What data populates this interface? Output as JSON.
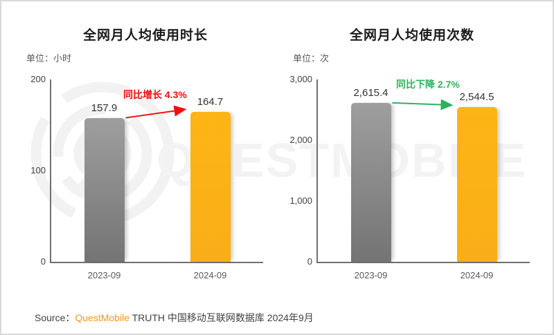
{
  "watermark": {
    "text": "QUESTMOBILE",
    "color": "#f3f3f3"
  },
  "source": {
    "label": "Source：",
    "brand": "QuestMobile",
    "brand_color": "#f7941e",
    "rest": " TRUTH 中国移动互联网数据库 2024年9月"
  },
  "chart_data": [
    {
      "type": "bar",
      "title": "全网月人均使用时长",
      "unit": "单位：小时",
      "categories": [
        "2023-09",
        "2024-09"
      ],
      "values": [
        157.9,
        164.7
      ],
      "value_labels": [
        "157.9",
        "164.7"
      ],
      "ylim": [
        0,
        200
      ],
      "yticks": [
        0,
        100,
        200
      ],
      "ytick_labels": [
        "0",
        "100",
        "200"
      ],
      "bar_styles": [
        {
          "top": "#9e9e9e",
          "bottom": "#747474"
        },
        {
          "top": "#fcb515",
          "bottom": "#f9ae17"
        }
      ],
      "grid": false,
      "legend": "none",
      "annotation": {
        "text": "同比增长 4.3%",
        "color": "#f20d0d",
        "trend": "up"
      }
    },
    {
      "type": "bar",
      "title": "全网月人均使用次数",
      "unit": "单位：次",
      "categories": [
        "2023-09",
        "2024-09"
      ],
      "values": [
        2615.4,
        2544.5
      ],
      "value_labels": [
        "2,615.4",
        "2,544.5"
      ],
      "ylim": [
        0,
        3000
      ],
      "yticks": [
        0,
        1000,
        2000,
        3000
      ],
      "ytick_labels": [
        "0",
        "1,000",
        "2,000",
        "3,000"
      ],
      "bar_styles": [
        {
          "top": "#9e9e9e",
          "bottom": "#747474"
        },
        {
          "top": "#fcb515",
          "bottom": "#f9ae17"
        }
      ],
      "grid": false,
      "legend": "none",
      "annotation": {
        "text": "同比下降 2.7%",
        "color": "#2cb25c",
        "trend": "down"
      }
    }
  ]
}
